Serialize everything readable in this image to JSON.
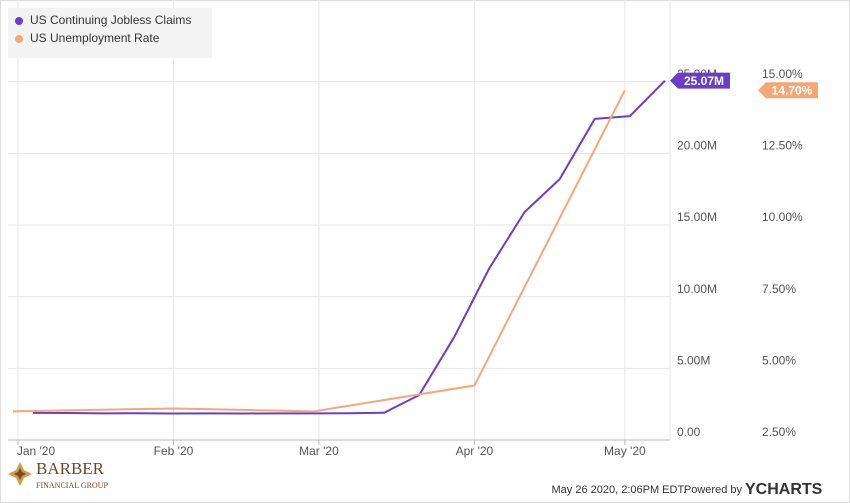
{
  "chart_data": {
    "type": "line",
    "xlim": [
      -1,
      131
    ],
    "xticks": [
      {
        "value": 1,
        "label": "Jan '20"
      },
      {
        "value": 32,
        "label": "Feb '20"
      },
      {
        "value": 61,
        "label": "Mar '20"
      },
      {
        "value": 92,
        "label": "Apr '20"
      },
      {
        "value": 122,
        "label": "May '20"
      }
    ],
    "ylim": [
      0,
      30000000
    ],
    "yticks": [
      {
        "value": 0,
        "label": "0.00"
      },
      {
        "value": 5000000,
        "label": "5.00M"
      },
      {
        "value": 10000000,
        "label": "10.00M"
      },
      {
        "value": 15000000,
        "label": "15.00M"
      },
      {
        "value": 20000000,
        "label": "20.00M"
      },
      {
        "value": 25000000,
        "label": "25.00M"
      }
    ],
    "y2lim": [
      2.5,
      17.5
    ],
    "y2ticks": [
      {
        "value": 2.5,
        "label": "2.50%"
      },
      {
        "value": 5,
        "label": "5.00%"
      },
      {
        "value": 7.5,
        "label": "7.50%"
      },
      {
        "value": 10,
        "label": "10.00%"
      },
      {
        "value": 12.5,
        "label": "12.50%"
      },
      {
        "value": 15,
        "label": "15.00%"
      }
    ],
    "grid": true,
    "legend": "top-left",
    "series": [
      {
        "name": "US Continuing Jobless Claims",
        "color": "#6a3fc8",
        "x": [
          4,
          11,
          18,
          25,
          32,
          39,
          46,
          53,
          60,
          67,
          74,
          81,
          88,
          95,
          102,
          109,
          116,
          123,
          130
        ],
        "values": [
          1890000,
          1880000,
          1860000,
          1870000,
          1850000,
          1860000,
          1850000,
          1860000,
          1860000,
          1870000,
          1900000,
          3140000,
          7200000,
          12000000,
          15900000,
          18200000,
          22400000,
          22600000,
          25070000
        ],
        "value_labels": [
          null,
          null,
          null,
          null,
          null,
          null,
          null,
          null,
          null,
          null,
          null,
          null,
          null,
          null,
          null,
          null,
          null,
          null,
          "25.07M"
        ]
      },
      {
        "name": "US Unemployment Rate",
        "color": "#f5a877",
        "axis": "y2",
        "x": [
          0,
          32,
          60,
          92,
          122
        ],
        "values": [
          3.5,
          3.6,
          3.5,
          4.4,
          14.7
        ],
        "value_labels": [
          null,
          null,
          null,
          null,
          "14.70%"
        ]
      }
    ]
  },
  "footer": {
    "logo_name": "BARBER",
    "logo_sub": "FINANCIAL GROUP",
    "timestamp": "May 26 2020, 2:06PM EDT.",
    "powered_by": "Powered by",
    "brand": "YCHARTS"
  }
}
